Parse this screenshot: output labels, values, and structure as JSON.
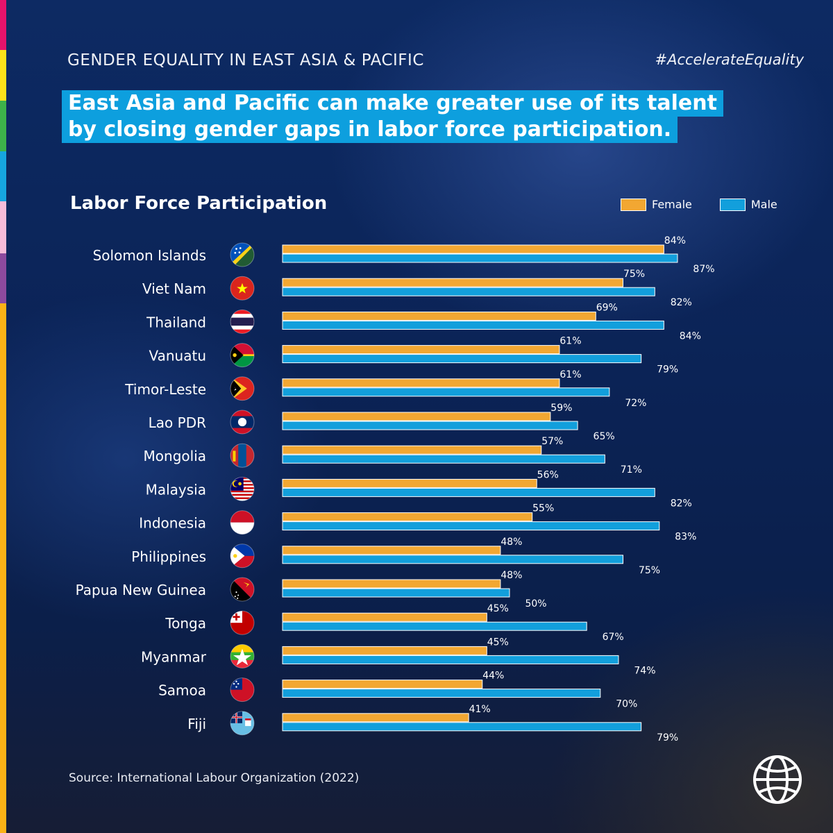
{
  "header": {
    "kicker": "GENDER EQUALITY IN EAST ASIA & PACIFIC",
    "hashtag": "#AccelerateEquality",
    "headline_lines": [
      "East Asia and Pacific can make greater use of its talent",
      "by closing gender gaps in labor force participation."
    ]
  },
  "stripe_colors": [
    "#e5136b",
    "#fde21a",
    "#3db24a",
    "#16a6e0",
    "#f7bcd9",
    "#8d4a9e",
    "#fbb216"
  ],
  "colors": {
    "female": "#f2a732",
    "male": "#129fdc"
  },
  "chart_data": {
    "type": "bar",
    "orientation": "horizontal",
    "title": "Labor Force Participation",
    "xlabel": "",
    "ylabel": "",
    "xlim": [
      0,
      100
    ],
    "grid": false,
    "legend_position": "top-right",
    "unit": "%",
    "categories": [
      "Solomon Islands",
      "Viet Nam",
      "Thailand",
      "Vanuatu",
      "Timor-Leste",
      "Lao PDR",
      "Mongolia",
      "Malaysia",
      "Indonesia",
      "Philippines",
      "Papua New Guinea",
      "Tonga",
      "Myanmar",
      "Samoa",
      "Fiji"
    ],
    "flags": [
      "solomon-islands-flag-icon",
      "viet-nam-flag-icon",
      "thailand-flag-icon",
      "vanuatu-flag-icon",
      "timor-leste-flag-icon",
      "lao-pdr-flag-icon",
      "mongolia-flag-icon",
      "malaysia-flag-icon",
      "indonesia-flag-icon",
      "philippines-flag-icon",
      "papua-new-guinea-flag-icon",
      "tonga-flag-icon",
      "myanmar-flag-icon",
      "samoa-flag-icon",
      "fiji-flag-icon"
    ],
    "series": [
      {
        "name": "Female",
        "color": "#f2a732",
        "values": [
          84,
          75,
          69,
          61,
          61,
          59,
          57,
          56,
          55,
          48,
          48,
          45,
          45,
          44,
          41
        ]
      },
      {
        "name": "Male",
        "color": "#129fdc",
        "values": [
          87,
          82,
          84,
          79,
          72,
          65,
          71,
          82,
          83,
          75,
          50,
          67,
          74,
          70,
          79
        ]
      }
    ]
  },
  "source": "Source: International Labour Organization (2022)",
  "logo": "world-bank-globe-icon"
}
